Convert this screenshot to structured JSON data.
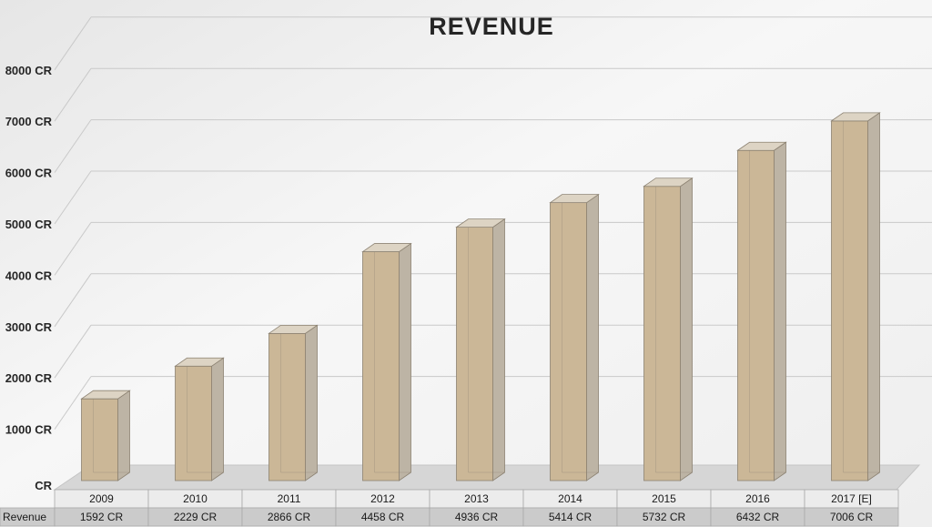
{
  "chart_data": {
    "type": "bar",
    "title": "REVENUE",
    "categories": [
      "2009",
      "2010",
      "2011",
      "2012",
      "2013",
      "2014",
      "2015",
      "2016",
      "2017 [E]"
    ],
    "series": [
      {
        "name": "Revenue",
        "values": [
          1592,
          2229,
          2866,
          4458,
          4936,
          5414,
          5732,
          6432,
          7006
        ]
      }
    ],
    "value_labels": [
      "1592 CR",
      "2229 CR",
      "2866 CR",
      "4458 CR",
      "4936 CR",
      "5414 CR",
      "5732 CR",
      "6432 CR",
      "7006 CR"
    ],
    "y_tick_labels": [
      "CR",
      "1000 CR",
      "2000 CR",
      "3000 CR",
      "4000 CR",
      "5000 CR",
      "6000 CR",
      "7000 CR",
      "8000 CR"
    ],
    "ylim": [
      0,
      8000
    ],
    "ytick_step": 1000,
    "grid": true,
    "data_table": {
      "row_label": "Revenue"
    },
    "colors": {
      "bar_front": "#cbb797",
      "bar_side": "#bdb4a5",
      "bar_top": "#ddd4c4",
      "bar_edge": "#8c8272",
      "grid": "#c9c9c9",
      "table_header": "#ececec",
      "table_row": "#cbcbcb",
      "floor": "#d6d6d6"
    }
  }
}
